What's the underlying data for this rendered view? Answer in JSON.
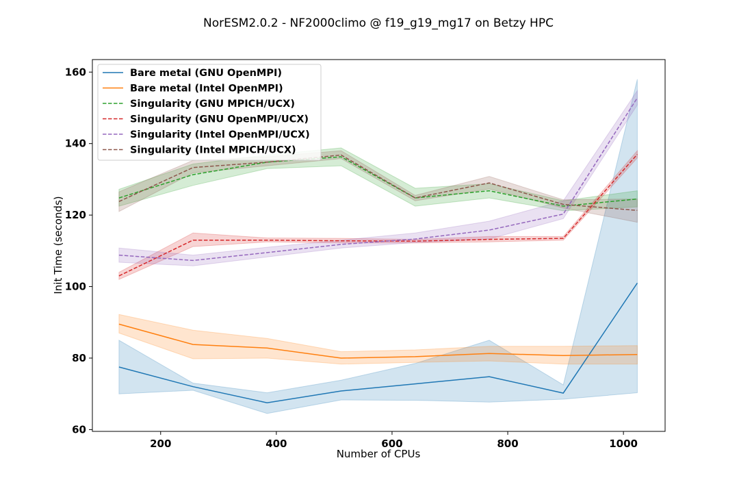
{
  "chart_data": {
    "type": "line",
    "title": "NorESM2.0.2 - NF2000climo @ f19_g19_mg17 on Betzy HPC",
    "xlabel": "Number of CPUs",
    "ylabel": "Init Time (seconds)",
    "xlim": [
      82,
      1072
    ],
    "ylim": [
      59.5,
      163.5
    ],
    "xticks": [
      200,
      400,
      600,
      800,
      1000
    ],
    "yticks": [
      60,
      80,
      100,
      120,
      140,
      160
    ],
    "grid": false,
    "legend_position": "upper-left",
    "x": [
      128,
      256,
      384,
      512,
      640,
      768,
      896,
      1024
    ],
    "series": [
      {
        "name": "Bare metal (GNU OpenMPI)",
        "color": "#1f77b4",
        "dash": "solid",
        "values": [
          77.5,
          72.0,
          67.5,
          70.8,
          72.8,
          74.8,
          70.2,
          101.0
        ],
        "lower": [
          70.0,
          71.0,
          64.5,
          68.3,
          68.2,
          67.7,
          68.5,
          70.3
        ],
        "upper": [
          85.0,
          73.0,
          70.3,
          73.8,
          78.5,
          85.0,
          72.5,
          158.0
        ]
      },
      {
        "name": "Bare metal (Intel OpenMPI)",
        "color": "#ff7f0e",
        "dash": "solid",
        "values": [
          89.5,
          83.8,
          82.8,
          80.0,
          80.4,
          81.3,
          80.7,
          81.0
        ],
        "lower": [
          87.0,
          79.8,
          80.0,
          78.3,
          78.8,
          79.2,
          78.3,
          78.3
        ],
        "upper": [
          92.2,
          87.8,
          85.5,
          81.8,
          82.3,
          83.3,
          83.3,
          83.5
        ]
      },
      {
        "name": "Singularity (GNU MPICH/UCX)",
        "color": "#2ca02c",
        "dash": "dashed",
        "values": [
          124.8,
          131.3,
          134.8,
          136.3,
          124.8,
          126.8,
          122.5,
          124.5
        ],
        "lower": [
          122.5,
          128.3,
          133.0,
          133.8,
          122.5,
          124.8,
          121.2,
          122.3
        ],
        "upper": [
          127.2,
          134.3,
          136.8,
          138.8,
          127.5,
          128.8,
          124.0,
          126.8
        ]
      },
      {
        "name": "Singularity (GNU OpenMPI/UCX)",
        "color": "#d62728",
        "dash": "dashed",
        "values": [
          103.0,
          113.0,
          113.0,
          112.8,
          112.7,
          113.2,
          113.5,
          137.0
        ],
        "lower": [
          102.0,
          111.2,
          112.5,
          112.2,
          112.2,
          112.5,
          113.0,
          136.0
        ],
        "upper": [
          104.0,
          115.0,
          113.6,
          113.5,
          113.2,
          114.0,
          114.0,
          138.0
        ]
      },
      {
        "name": "Singularity (Intel OpenMPI/UCX)",
        "color": "#9467bd",
        "dash": "dashed",
        "values": [
          108.8,
          107.3,
          109.5,
          111.8,
          113.3,
          115.8,
          120.3,
          152.8
        ],
        "lower": [
          106.8,
          105.8,
          108.3,
          110.8,
          112.3,
          113.3,
          119.0,
          150.8
        ],
        "upper": [
          110.8,
          108.8,
          111.0,
          113.0,
          115.0,
          118.3,
          124.0,
          154.8
        ]
      },
      {
        "name": "Singularity (Intel MPICH/UCX)",
        "color": "#8c564b",
        "dash": "dashed",
        "values": [
          123.8,
          133.3,
          134.8,
          136.8,
          124.8,
          129.0,
          123.0,
          121.3
        ],
        "lower": [
          121.0,
          131.8,
          133.8,
          135.8,
          124.0,
          127.3,
          122.0,
          118.0
        ],
        "upper": [
          126.5,
          135.3,
          136.3,
          138.0,
          125.5,
          130.8,
          124.3,
          124.5
        ]
      }
    ]
  }
}
